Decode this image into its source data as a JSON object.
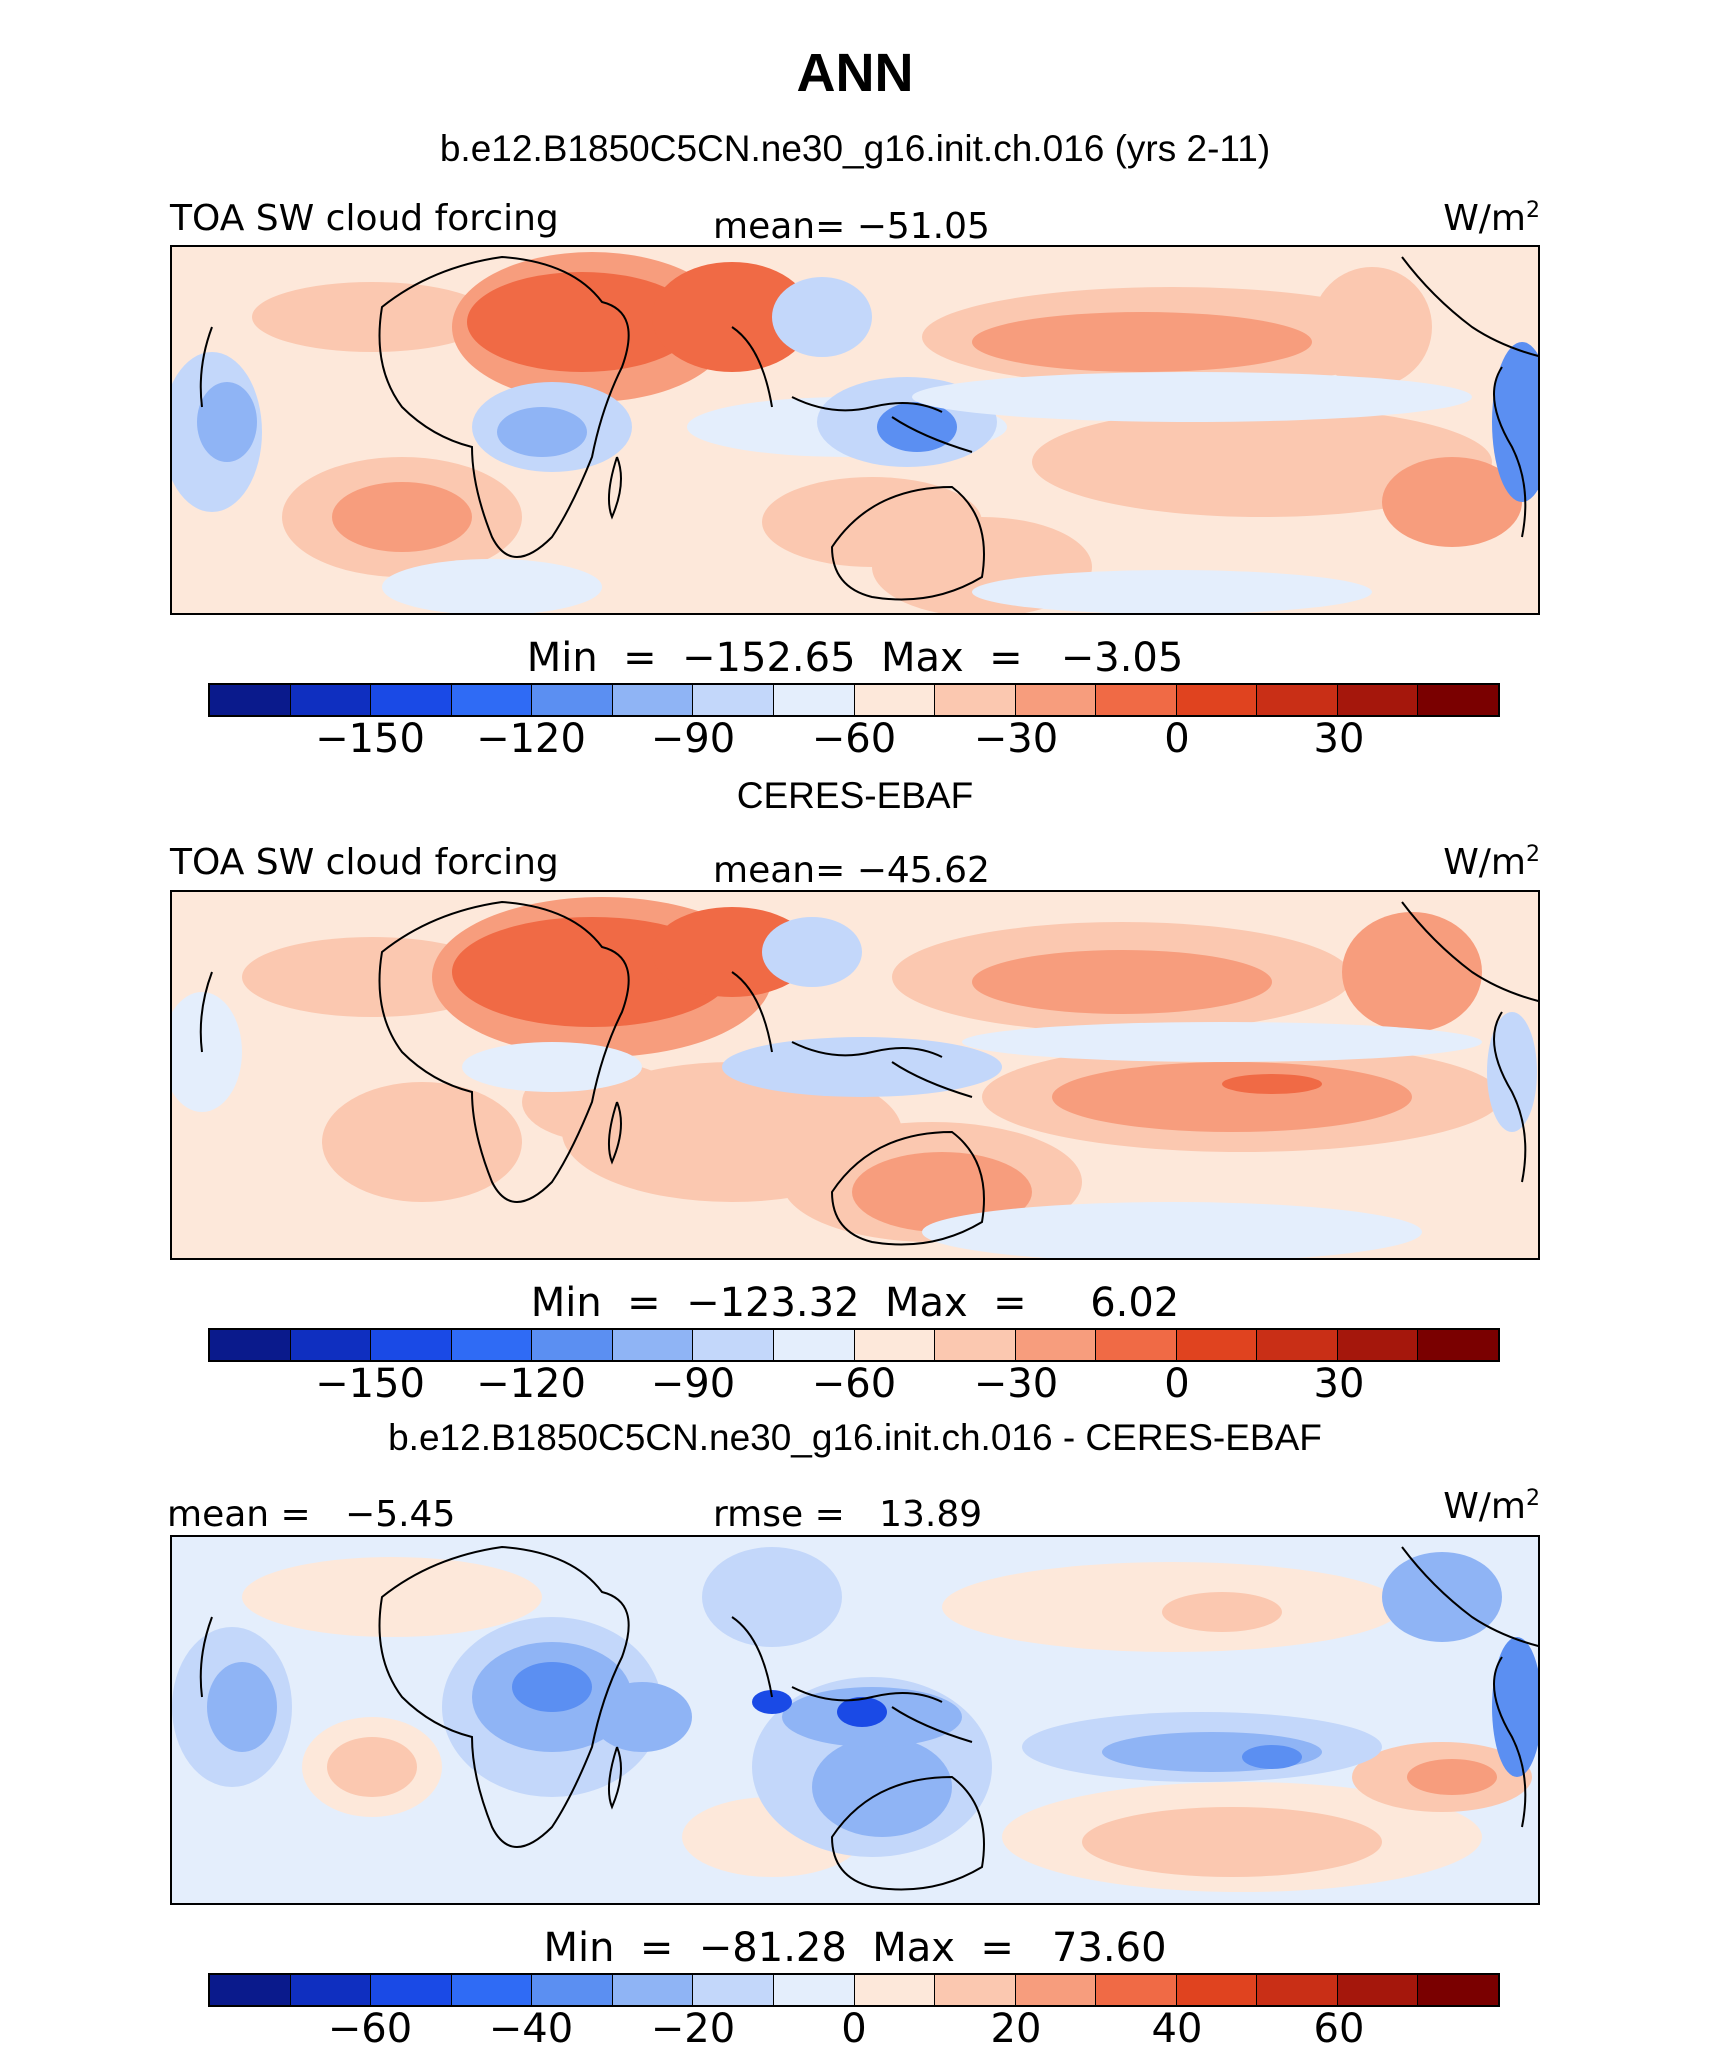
{
  "title": "ANN",
  "panels": [
    {
      "case_title": "b.e12.B1850C5CN.ne30_g16.init.ch.016 (yrs 2-11)",
      "left_label": "TOA SW cloud forcing",
      "center_label": "mean= −51.05",
      "units_base": "W/m",
      "units_exp": "2",
      "minmax": "Min  =  −152.65  Max  =   −3.05",
      "ticks": [
        "−150",
        "−120",
        "−90",
        "−60",
        "−30",
        "0",
        "30"
      ]
    },
    {
      "case_title": "CERES-EBAF",
      "left_label": "TOA SW cloud forcing",
      "center_label": "mean= −45.62",
      "units_base": "W/m",
      "units_exp": "2",
      "minmax": "Min  =  −123.32  Max  =     6.02",
      "ticks": [
        "−150",
        "−120",
        "−90",
        "−60",
        "−30",
        "0",
        "30"
      ]
    },
    {
      "case_title": "b.e12.B1850C5CN.ne30_g16.init.ch.016 - CERES-EBAF",
      "left_label": "mean =   −5.45",
      "center_label": "rmse =   13.89",
      "units_base": "W/m",
      "units_exp": "2",
      "minmax": "Min  =  −81.28  Max  =   73.60",
      "ticks": [
        "−60",
        "−40",
        "−20",
        "0",
        "20",
        "40",
        "60"
      ]
    }
  ],
  "colorbar_colors": [
    "#0a1a8c",
    "#0f2fc0",
    "#1a4ae6",
    "#2f6bf5",
    "#5b8ff2",
    "#8fb4f5",
    "#c3d7fa",
    "#e4eefc",
    "#fde8da",
    "#fbc8b0",
    "#f79d7d",
    "#f06a45",
    "#e0431f",
    "#c92f16",
    "#a5170c",
    "#7a0000"
  ]
}
